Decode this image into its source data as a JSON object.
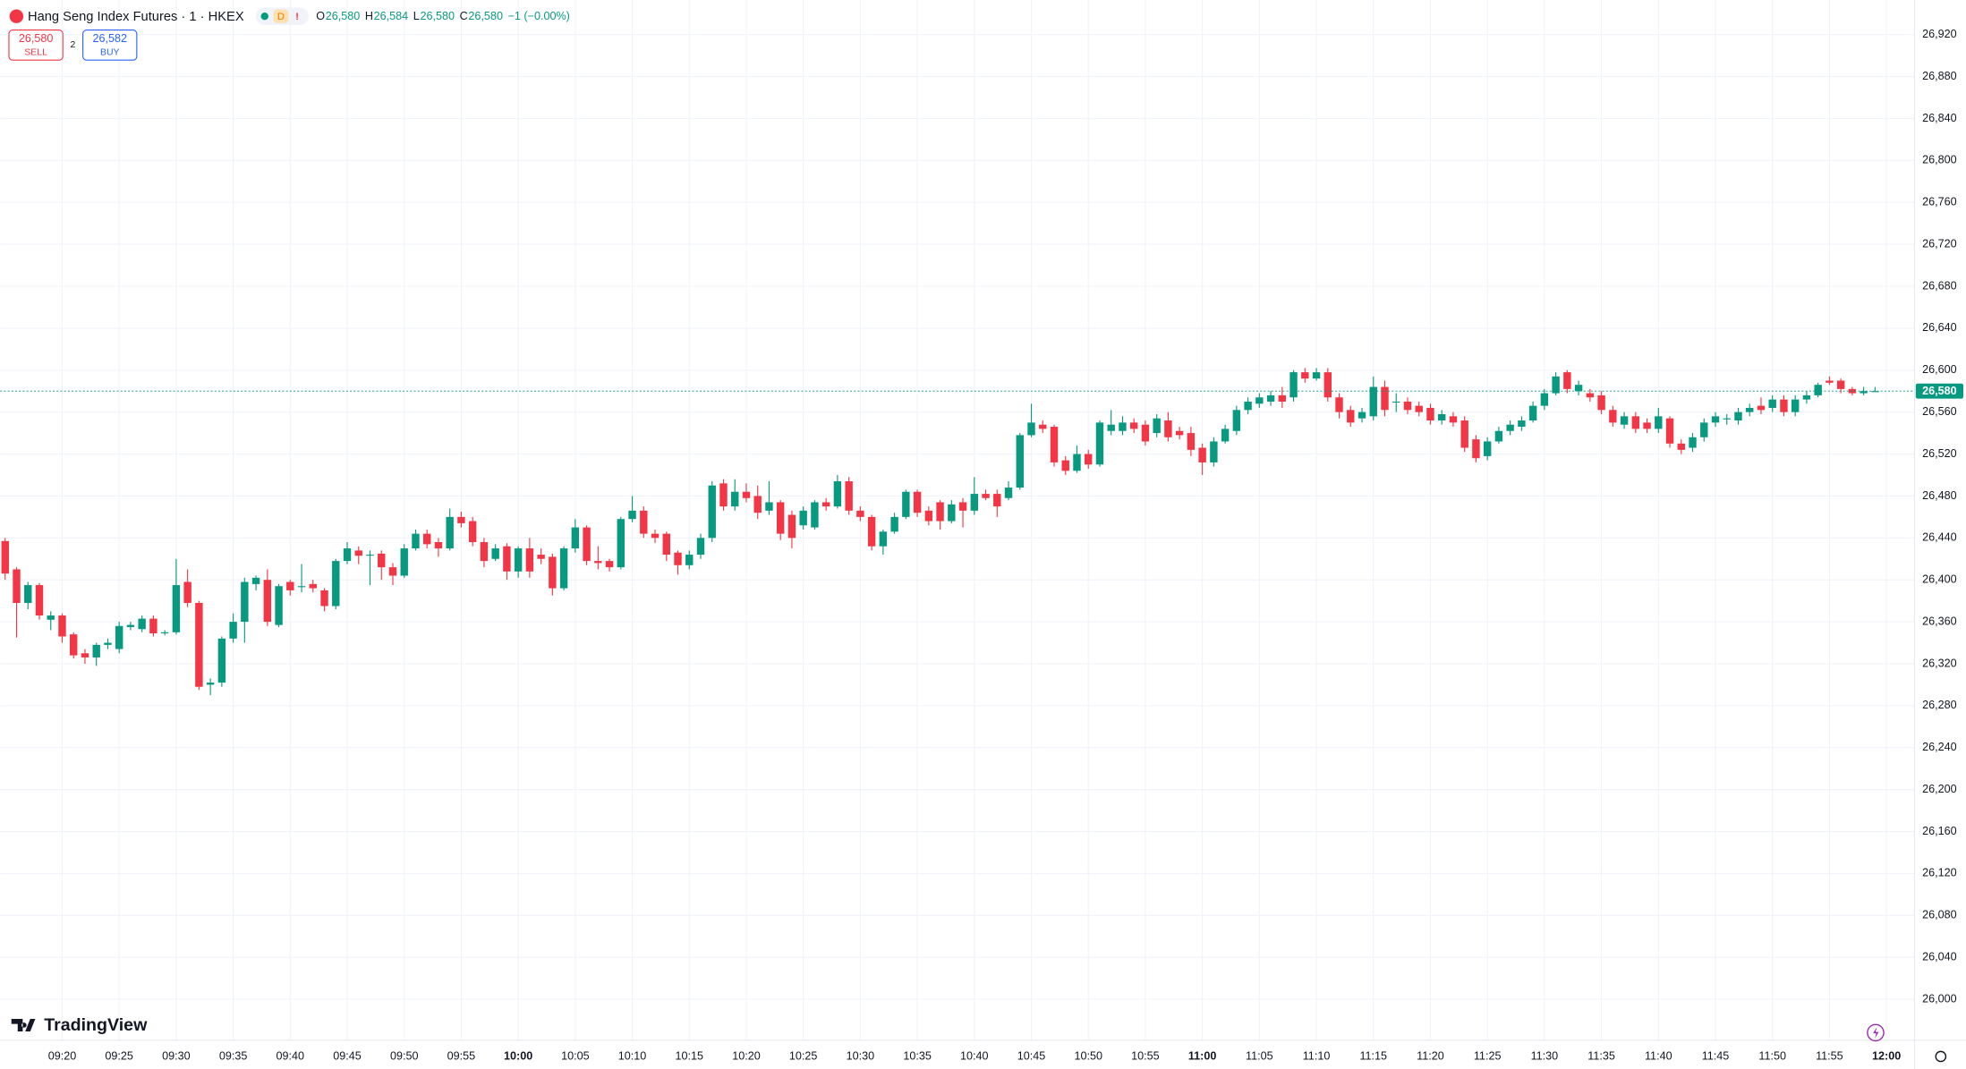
{
  "header": {
    "symbol": "Hang Seng Index Futures · 1 · HKEX",
    "badge": "D",
    "alert": "!",
    "ohlc": [
      {
        "label": "O",
        "value": "26,580"
      },
      {
        "label": "H",
        "value": "26,584"
      },
      {
        "label": "L",
        "value": "26,580"
      },
      {
        "label": "C",
        "value": "26,580"
      }
    ],
    "change": "−1 (−0.00%)"
  },
  "trade": {
    "sell_price": "26,580",
    "sell_label": "SELL",
    "spread": "2",
    "buy_price": "26,582",
    "buy_label": "BUY"
  },
  "branding": "TradingView",
  "chart_data": {
    "type": "candlestick",
    "up_color": "#089981",
    "down_color": "#f23645",
    "grid": true,
    "x_labels": [
      "09:20",
      "09:25",
      "09:30",
      "09:35",
      "09:40",
      "09:45",
      "09:50",
      "09:55",
      "10:00",
      "10:05",
      "10:10",
      "10:15",
      "10:20",
      "10:25",
      "10:30",
      "10:35",
      "10:40",
      "10:45",
      "10:50",
      "10:55",
      "11:00",
      "11:05",
      "11:10",
      "11:15",
      "11:20",
      "11:25",
      "11:30",
      "11:35",
      "11:40",
      "11:45",
      "11:50",
      "11:55",
      "12:00"
    ],
    "ylim": [
      25961,
      26953
    ],
    "yticks": [
      {
        "value": 26000,
        "label": "26,000"
      },
      {
        "value": 26040,
        "label": "26,040"
      },
      {
        "value": 26080,
        "label": "26,080"
      },
      {
        "value": 26120,
        "label": "26,120"
      },
      {
        "value": 26160,
        "label": "26,160"
      },
      {
        "value": 26200,
        "label": "26,200"
      },
      {
        "value": 26240,
        "label": "26,240"
      },
      {
        "value": 26280,
        "label": "26,280"
      },
      {
        "value": 26320,
        "label": "26,320"
      },
      {
        "value": 26360,
        "label": "26,360"
      },
      {
        "value": 26400,
        "label": "26,400"
      },
      {
        "value": 26440,
        "label": "26,440"
      },
      {
        "value": 26480,
        "label": "26,480"
      },
      {
        "value": 26520,
        "label": "26,520"
      },
      {
        "value": 26560,
        "label": "26,560"
      },
      {
        "value": 26600,
        "label": "26,600"
      },
      {
        "value": 26640,
        "label": "26,640"
      },
      {
        "value": 26680,
        "label": "26,680"
      },
      {
        "value": 26720,
        "label": "26,720"
      },
      {
        "value": 26760,
        "label": "26,760"
      },
      {
        "value": 26800,
        "label": "26,800"
      },
      {
        "value": 26840,
        "label": "26,840"
      },
      {
        "value": 26880,
        "label": "26,880"
      },
      {
        "value": 26920,
        "label": "26,920"
      }
    ],
    "last_price": {
      "value": 26580,
      "label": "26,580"
    },
    "candles": [
      [
        26437,
        26440,
        26400,
        26406
      ],
      [
        26410,
        26412,
        26345,
        26378
      ],
      [
        26378,
        26398,
        26372,
        26395
      ],
      [
        26395,
        26397,
        26362,
        26366
      ],
      [
        26362,
        26370,
        26352,
        26366
      ],
      [
        26366,
        26368,
        26340,
        26346
      ],
      [
        26348,
        26350,
        26325,
        26328
      ],
      [
        26330,
        26334,
        26320,
        26326
      ],
      [
        26326,
        26340,
        26318,
        26338
      ],
      [
        26338,
        26344,
        26334,
        26340
      ],
      [
        26334,
        26360,
        26330,
        26356
      ],
      [
        26355,
        26360,
        26352,
        26357
      ],
      [
        26353,
        26366,
        26350,
        26363
      ],
      [
        26363,
        26366,
        26346,
        26349
      ],
      [
        26350,
        26352,
        26347,
        26350
      ],
      [
        26350,
        26420,
        26348,
        26395
      ],
      [
        26398,
        26410,
        26374,
        26378
      ],
      [
        26378,
        26380,
        26295,
        26298
      ],
      [
        26300,
        26306,
        26290,
        26302
      ],
      [
        26302,
        26346,
        26298,
        26344
      ],
      [
        26344,
        26368,
        26340,
        26360
      ],
      [
        26360,
        26402,
        26340,
        26398
      ],
      [
        26396,
        26404,
        26390,
        26402
      ],
      [
        26400,
        26410,
        26356,
        26360
      ],
      [
        26357,
        26396,
        26355,
        26394
      ],
      [
        26398,
        26400,
        26385,
        26390
      ],
      [
        26394,
        26415,
        26388,
        26394
      ],
      [
        26396,
        26400,
        26388,
        26392
      ],
      [
        26390,
        26392,
        26370,
        26375
      ],
      [
        26375,
        26420,
        26372,
        26418
      ],
      [
        26418,
        26436,
        26415,
        26430
      ],
      [
        26428,
        26432,
        26415,
        26423
      ],
      [
        26424,
        26428,
        26395,
        26424
      ],
      [
        26425,
        26428,
        26400,
        26412
      ],
      [
        26412,
        26416,
        26395,
        26404
      ],
      [
        26404,
        26434,
        26402,
        26430
      ],
      [
        26430,
        26448,
        26428,
        26444
      ],
      [
        26444,
        26448,
        26430,
        26434
      ],
      [
        26436,
        26440,
        26422,
        26430
      ],
      [
        26430,
        26468,
        26428,
        26460
      ],
      [
        26460,
        26465,
        26450,
        26454
      ],
      [
        26456,
        26460,
        26432,
        26436
      ],
      [
        26436,
        26440,
        26412,
        26418
      ],
      [
        26420,
        26434,
        26418,
        26430
      ],
      [
        26432,
        26435,
        26400,
        26408
      ],
      [
        26408,
        26432,
        26402,
        26430
      ],
      [
        26430,
        26440,
        26402,
        26408
      ],
      [
        26424,
        26430,
        26415,
        26420
      ],
      [
        26422,
        26425,
        26385,
        26392
      ],
      [
        26392,
        26432,
        26390,
        26430
      ],
      [
        26430,
        26458,
        26426,
        26450
      ],
      [
        26450,
        26452,
        26414,
        26418
      ],
      [
        26418,
        26432,
        26410,
        26416
      ],
      [
        26418,
        26420,
        26408,
        26412
      ],
      [
        26412,
        26460,
        26410,
        26458
      ],
      [
        26458,
        26480,
        26455,
        26466
      ],
      [
        26466,
        26470,
        26440,
        26444
      ],
      [
        26444,
        26448,
        26435,
        26440
      ],
      [
        26444,
        26446,
        26418,
        26424
      ],
      [
        26426,
        26428,
        26405,
        26414
      ],
      [
        26414,
        26428,
        26410,
        26424
      ],
      [
        26424,
        26444,
        26420,
        26440
      ],
      [
        26440,
        26494,
        26436,
        26490
      ],
      [
        26492,
        26496,
        26466,
        26470
      ],
      [
        26470,
        26496,
        26466,
        26484
      ],
      [
        26484,
        26492,
        26474,
        26478
      ],
      [
        26480,
        26490,
        26458,
        26464
      ],
      [
        26466,
        26494,
        26462,
        26474
      ],
      [
        26474,
        26476,
        26438,
        26444
      ],
      [
        26462,
        26466,
        26430,
        26440
      ],
      [
        26452,
        26470,
        26448,
        26466
      ],
      [
        26450,
        26476,
        26448,
        26474
      ],
      [
        26474,
        26478,
        26466,
        26470
      ],
      [
        26470,
        26500,
        26468,
        26494
      ],
      [
        26494,
        26498,
        26462,
        26466
      ],
      [
        26466,
        26470,
        26456,
        26460
      ],
      [
        26460,
        26462,
        26428,
        26432
      ],
      [
        26432,
        26448,
        26424,
        26446
      ],
      [
        26446,
        26464,
        26444,
        26460
      ],
      [
        26460,
        26486,
        26458,
        26484
      ],
      [
        26484,
        26486,
        26460,
        26464
      ],
      [
        26466,
        26470,
        26452,
        26456
      ],
      [
        26474,
        26476,
        26448,
        26456
      ],
      [
        26456,
        26476,
        26454,
        26472
      ],
      [
        26474,
        26478,
        26450,
        26466
      ],
      [
        26466,
        26498,
        26462,
        26482
      ],
      [
        26482,
        26486,
        26476,
        26478
      ],
      [
        26482,
        26486,
        26460,
        26470
      ],
      [
        26478,
        26494,
        26476,
        26488
      ],
      [
        26488,
        26540,
        26486,
        26538
      ],
      [
        26538,
        26568,
        26536,
        26550
      ],
      [
        26548,
        26552,
        26540,
        26544
      ],
      [
        26546,
        26548,
        26508,
        26512
      ],
      [
        26514,
        26518,
        26500,
        26504
      ],
      [
        26504,
        26528,
        26502,
        26520
      ],
      [
        26520,
        26524,
        26506,
        26510
      ],
      [
        26510,
        26552,
        26508,
        26550
      ],
      [
        26542,
        26562,
        26538,
        26548
      ],
      [
        26542,
        26556,
        26538,
        26550
      ],
      [
        26550,
        26554,
        26540,
        26544
      ],
      [
        26548,
        26552,
        26528,
        26532
      ],
      [
        26540,
        26558,
        26536,
        26554
      ],
      [
        26552,
        26560,
        26532,
        26536
      ],
      [
        26542,
        26546,
        26534,
        26538
      ],
      [
        26540,
        26546,
        26518,
        26524
      ],
      [
        26526,
        26530,
        26500,
        26512
      ],
      [
        26512,
        26536,
        26508,
        26532
      ],
      [
        26532,
        26548,
        26530,
        26544
      ],
      [
        26542,
        26566,
        26538,
        26562
      ],
      [
        26562,
        26574,
        26558,
        26570
      ],
      [
        26568,
        26578,
        26564,
        26574
      ],
      [
        26570,
        26580,
        26566,
        26576
      ],
      [
        26576,
        26584,
        26564,
        26570
      ],
      [
        26574,
        26600,
        26570,
        26598
      ],
      [
        26598,
        26602,
        26588,
        26592
      ],
      [
        26592,
        26602,
        26590,
        26598
      ],
      [
        26598,
        26602,
        26570,
        26574
      ],
      [
        26574,
        26578,
        26554,
        26560
      ],
      [
        26562,
        26566,
        26546,
        26550
      ],
      [
        26554,
        26564,
        26550,
        26560
      ],
      [
        26556,
        26594,
        26552,
        26584
      ],
      [
        26584,
        26590,
        26556,
        26562
      ],
      [
        26570,
        26578,
        26560,
        26570
      ],
      [
        26570,
        26574,
        26558,
        26562
      ],
      [
        26566,
        26570,
        26556,
        26560
      ],
      [
        26564,
        26568,
        26548,
        26552
      ],
      [
        26552,
        26562,
        26548,
        26558
      ],
      [
        26556,
        26560,
        26546,
        26550
      ],
      [
        26552,
        26556,
        26522,
        26526
      ],
      [
        26534,
        26538,
        26512,
        26516
      ],
      [
        26518,
        26536,
        26514,
        26532
      ],
      [
        26532,
        26546,
        26530,
        26542
      ],
      [
        26542,
        26552,
        26538,
        26548
      ],
      [
        26546,
        26556,
        26542,
        26552
      ],
      [
        26552,
        26570,
        26550,
        26566
      ],
      [
        26566,
        26582,
        26562,
        26578
      ],
      [
        26578,
        26598,
        26576,
        26594
      ],
      [
        26598,
        26600,
        26578,
        26582
      ],
      [
        26580,
        26590,
        26576,
        26586
      ],
      [
        26578,
        26582,
        26570,
        26574
      ],
      [
        26576,
        26580,
        26558,
        26562
      ],
      [
        26562,
        26566,
        26546,
        26550
      ],
      [
        26548,
        26560,
        26544,
        26556
      ],
      [
        26556,
        26560,
        26540,
        26544
      ],
      [
        26550,
        26554,
        26540,
        26544
      ],
      [
        26544,
        26564,
        26540,
        26556
      ],
      [
        26554,
        26556,
        26526,
        26530
      ],
      [
        26530,
        26534,
        26520,
        26524
      ],
      [
        26526,
        26540,
        26522,
        26536
      ],
      [
        26536,
        26554,
        26532,
        26550
      ],
      [
        26550,
        26560,
        26546,
        26556
      ],
      [
        26554,
        26558,
        26548,
        26554
      ],
      [
        26552,
        26564,
        26548,
        26560
      ],
      [
        26560,
        26568,
        26556,
        26564
      ],
      [
        26566,
        26574,
        26558,
        26562
      ],
      [
        26564,
        26576,
        26560,
        26572
      ],
      [
        26572,
        26576,
        26556,
        26560
      ],
      [
        26560,
        26576,
        26556,
        26572
      ],
      [
        26572,
        26580,
        26568,
        26576
      ],
      [
        26576,
        26588,
        26574,
        26586
      ],
      [
        26590,
        26594,
        26586,
        26588
      ],
      [
        26590,
        26592,
        26578,
        26582
      ],
      [
        26582,
        26584,
        26576,
        26578
      ],
      [
        26578,
        26584,
        26576,
        26580
      ],
      [
        26580,
        26584,
        26580,
        26580
      ]
    ]
  }
}
